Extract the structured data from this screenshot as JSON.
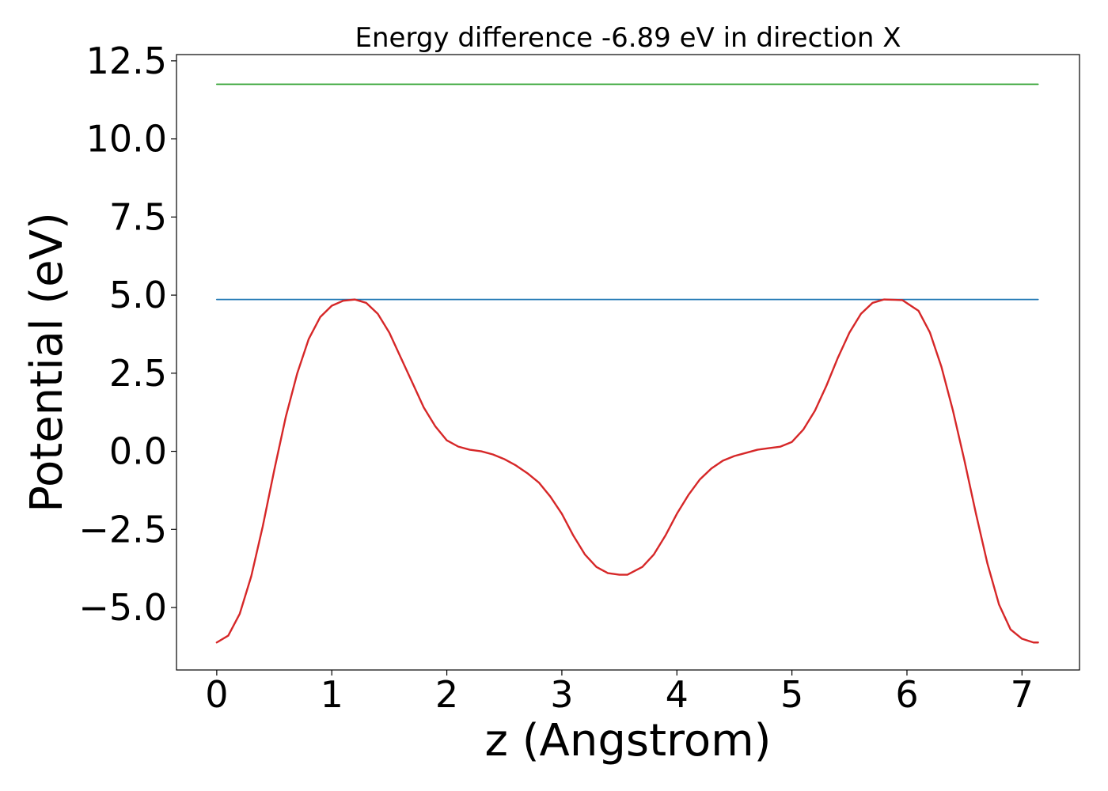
{
  "chart_data": {
    "type": "line",
    "title": "Energy difference -6.89 eV in direction X",
    "xlabel": "z (Angstrom)",
    "ylabel": "Potential (eV)",
    "xlim": [
      -0.35,
      7.5
    ],
    "ylim": [
      -7.0,
      12.7
    ],
    "xticks": [
      0,
      1,
      2,
      3,
      4,
      5,
      6,
      7
    ],
    "xtick_labels": [
      "0",
      "1",
      "2",
      "3",
      "4",
      "5",
      "6",
      "7"
    ],
    "yticks": [
      -5.0,
      -2.5,
      0.0,
      2.5,
      5.0,
      7.5,
      10.0,
      12.5
    ],
    "ytick_labels": [
      "−5.0",
      "−2.5",
      "0.0",
      "2.5",
      "5.0",
      "7.5",
      "10.0",
      "12.5"
    ],
    "grid": false,
    "series": [
      {
        "color": "#2ca02c",
        "x": [
          0,
          7.14
        ],
        "y": [
          11.75,
          11.75
        ]
      },
      {
        "color": "#1f77b4",
        "x": [
          0,
          7.14
        ],
        "y": [
          4.86,
          4.86
        ]
      },
      {
        "color": "#d62728",
        "x": [
          0,
          0.1,
          0.2,
          0.3,
          0.4,
          0.5,
          0.6,
          0.7,
          0.8,
          0.9,
          1.0,
          1.1,
          1.2,
          1.3,
          1.4,
          1.5,
          1.6,
          1.7,
          1.8,
          1.9,
          2.0,
          2.1,
          2.2,
          2.3,
          2.4,
          2.5,
          2.6,
          2.7,
          2.8,
          2.9,
          3.0,
          3.1,
          3.2,
          3.3,
          3.4,
          3.5,
          3.57,
          3.7,
          3.8,
          3.9,
          4.0,
          4.1,
          4.2,
          4.3,
          4.4,
          4.5,
          4.6,
          4.7,
          4.8,
          4.9,
          5.0,
          5.1,
          5.2,
          5.3,
          5.4,
          5.5,
          5.6,
          5.7,
          5.8,
          5.9,
          5.96,
          6.1,
          6.2,
          6.3,
          6.4,
          6.5,
          6.6,
          6.7,
          6.8,
          6.9,
          7.0,
          7.1,
          7.14
        ],
        "y": [
          -6.12,
          -5.9,
          -5.2,
          -4.0,
          -2.4,
          -0.6,
          1.1,
          2.5,
          3.6,
          4.3,
          4.66,
          4.82,
          4.86,
          4.75,
          4.4,
          3.8,
          3.0,
          2.2,
          1.4,
          0.8,
          0.35,
          0.15,
          0.05,
          0.0,
          -0.1,
          -0.25,
          -0.45,
          -0.7,
          -1.0,
          -1.45,
          -2.0,
          -2.7,
          -3.3,
          -3.7,
          -3.9,
          -3.95,
          -3.95,
          -3.7,
          -3.3,
          -2.7,
          -2.0,
          -1.4,
          -0.9,
          -0.55,
          -0.3,
          -0.15,
          -0.05,
          0.05,
          0.1,
          0.15,
          0.3,
          0.7,
          1.3,
          2.1,
          3.0,
          3.8,
          4.4,
          4.75,
          4.86,
          4.85,
          4.84,
          4.5,
          3.8,
          2.7,
          1.3,
          -0.3,
          -2.0,
          -3.6,
          -4.9,
          -5.7,
          -6.0,
          -6.12,
          -6.12
        ]
      }
    ]
  }
}
